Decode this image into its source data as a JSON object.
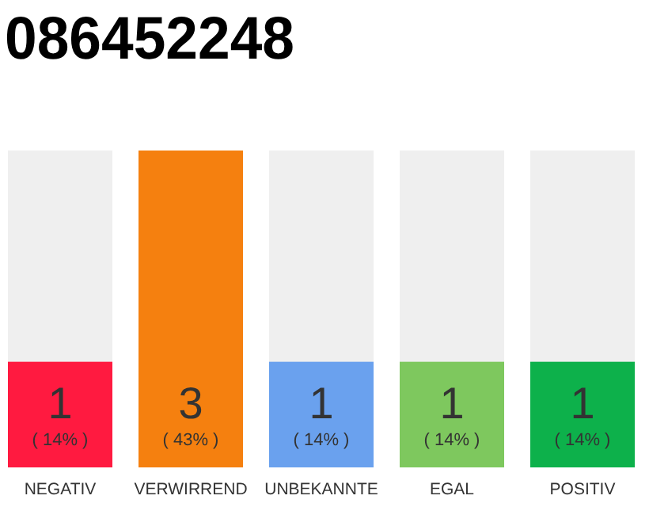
{
  "chart_data": {
    "type": "bar",
    "title": "086452248",
    "categories": [
      "NEGATIV",
      "VERWIRREND",
      "UNBEKANNTE",
      "EGAL",
      "POSITIV"
    ],
    "values": [
      1,
      3,
      1,
      1,
      1
    ],
    "colors": [
      "#ff1a40",
      "#f5800f",
      "#6aa1ee",
      "#7ec85e",
      "#0db14b"
    ],
    "ylim": [
      0,
      3
    ],
    "tick_labels": "x",
    "data_labels": true,
    "annotations": [
      "( 14% )",
      "( 43% )",
      "( 14% )",
      "( 14% )",
      "( 14% )"
    ]
  }
}
